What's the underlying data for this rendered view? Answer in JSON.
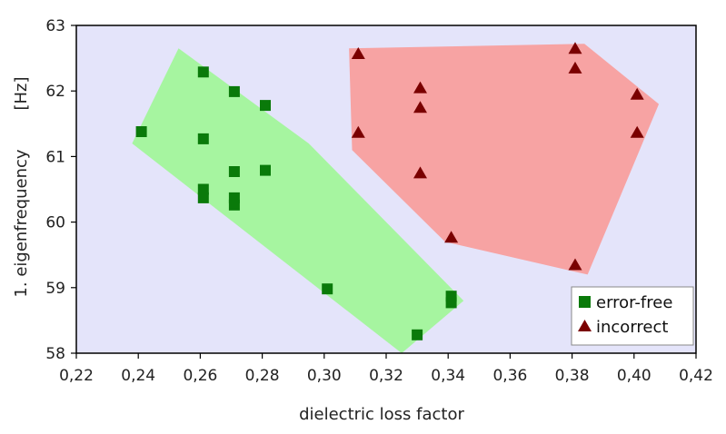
{
  "chart_data": {
    "type": "scatter",
    "xlabel": "dielectric loss factor",
    "ylabel": "1. eigenfrequency",
    "ylabel_unit": "[Hz]",
    "xlim": [
      0.22,
      0.42
    ],
    "ylim": [
      58,
      63
    ],
    "x_ticks": [
      "0,22",
      "0,24",
      "0,26",
      "0,28",
      "0,30",
      "0,32",
      "0,34",
      "0,36",
      "0,38",
      "0,40",
      "0,42"
    ],
    "y_ticks": [
      "58",
      "59",
      "60",
      "61",
      "62",
      "63"
    ],
    "grid": false,
    "legend_position": "bottom-right",
    "background_color": "#e4e4fa",
    "series": [
      {
        "name": "error-free",
        "marker": "square",
        "color": "#0a7a0a",
        "region_color": "#a6f5a0",
        "points": [
          {
            "x": 0.241,
            "y": 61.38
          },
          {
            "x": 0.261,
            "y": 62.29
          },
          {
            "x": 0.261,
            "y": 61.27
          },
          {
            "x": 0.261,
            "y": 60.5
          },
          {
            "x": 0.261,
            "y": 60.37
          },
          {
            "x": 0.271,
            "y": 61.99
          },
          {
            "x": 0.271,
            "y": 60.77
          },
          {
            "x": 0.271,
            "y": 60.37
          },
          {
            "x": 0.271,
            "y": 60.26
          },
          {
            "x": 0.281,
            "y": 61.78
          },
          {
            "x": 0.281,
            "y": 60.79
          },
          {
            "x": 0.301,
            "y": 58.98
          },
          {
            "x": 0.33,
            "y": 58.28
          },
          {
            "x": 0.341,
            "y": 58.87
          },
          {
            "x": 0.341,
            "y": 58.77
          }
        ],
        "region": [
          [
            0.253,
            62.65
          ],
          [
            0.295,
            61.2
          ],
          [
            0.345,
            58.8
          ],
          [
            0.325,
            58.0
          ],
          [
            0.238,
            61.2
          ]
        ]
      },
      {
        "name": "incorrect",
        "marker": "triangle",
        "color": "#7a0000",
        "region_color": "#f7a3a3",
        "points": [
          {
            "x": 0.311,
            "y": 62.57
          },
          {
            "x": 0.311,
            "y": 61.37
          },
          {
            "x": 0.331,
            "y": 62.05
          },
          {
            "x": 0.331,
            "y": 61.75
          },
          {
            "x": 0.331,
            "y": 60.75
          },
          {
            "x": 0.341,
            "y": 59.77
          },
          {
            "x": 0.381,
            "y": 62.65
          },
          {
            "x": 0.381,
            "y": 62.35
          },
          {
            "x": 0.381,
            "y": 59.35
          },
          {
            "x": 0.401,
            "y": 61.95
          },
          {
            "x": 0.401,
            "y": 61.37
          }
        ],
        "region": [
          [
            0.308,
            62.65
          ],
          [
            0.384,
            62.72
          ],
          [
            0.408,
            61.8
          ],
          [
            0.385,
            59.2
          ],
          [
            0.339,
            59.7
          ],
          [
            0.309,
            61.1
          ]
        ]
      }
    ]
  }
}
